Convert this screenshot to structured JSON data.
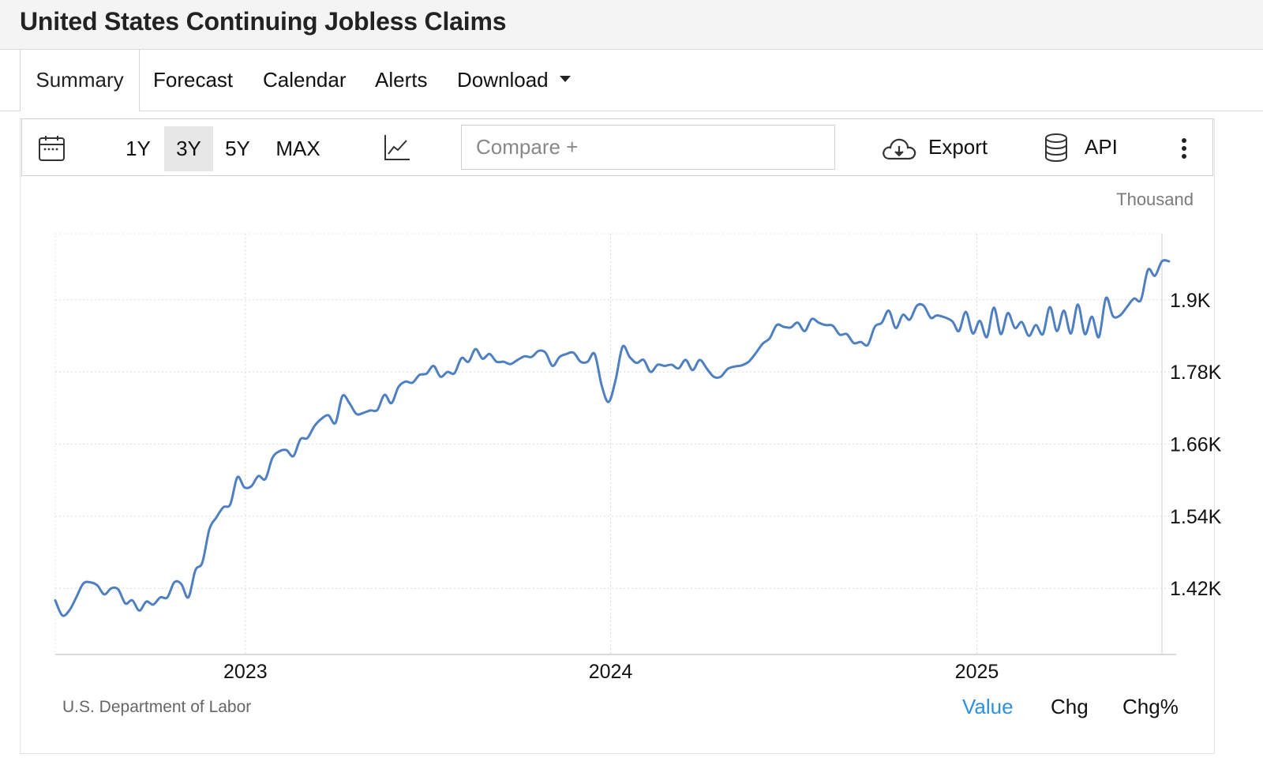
{
  "page": {
    "title": "United States Continuing Jobless Claims"
  },
  "tabs": [
    {
      "label": "Summary",
      "active": true
    },
    {
      "label": "Forecast"
    },
    {
      "label": "Calendar"
    },
    {
      "label": "Alerts"
    },
    {
      "label": "Download"
    }
  ],
  "toolbar": {
    "ranges": [
      "1Y",
      "3Y",
      "5Y",
      "MAX"
    ],
    "active_range": "3Y",
    "compare_placeholder": "Compare +",
    "export_label": "Export",
    "api_label": "API",
    "icons": [
      "calendar-icon",
      "line-chart-icon",
      "cloud-download-icon",
      "database-icon",
      "more-vertical-icon"
    ]
  },
  "chart": {
    "unit_label": "Thousand",
    "source": "U.S. Department of Labor",
    "modes": [
      "Value",
      "Chg",
      "Chg%"
    ],
    "active_mode": "Value"
  },
  "colors": {
    "line": "#4e7fc0",
    "accent": "#2e8fdd",
    "grid": "#d9d9d9"
  },
  "chart_data": {
    "type": "line",
    "title": "",
    "xlabel": "",
    "ylabel": "",
    "x_ticks": [
      "2023",
      "2024",
      "2025"
    ],
    "y_ticks": [
      {
        "value": 1420,
        "label": "1.42K"
      },
      {
        "value": 1540,
        "label": "1.54K"
      },
      {
        "value": 1660,
        "label": "1.66K"
      },
      {
        "value": 1780,
        "label": "1.78K"
      },
      {
        "value": 1900,
        "label": "1.9K"
      }
    ],
    "ylim": [
      1310,
      2010
    ],
    "xlim": [
      "2022-06-25",
      "2025-07-05"
    ],
    "grid": true,
    "series": [
      {
        "points": [
          [
            "2022-06-25",
            1400
          ],
          [
            "2022-07-02",
            1375
          ],
          [
            "2022-07-09",
            1383
          ],
          [
            "2022-07-16",
            1405
          ],
          [
            "2022-07-23",
            1428
          ],
          [
            "2022-07-30",
            1430
          ],
          [
            "2022-08-06",
            1425
          ],
          [
            "2022-08-13",
            1410
          ],
          [
            "2022-08-20",
            1420
          ],
          [
            "2022-08-27",
            1418
          ],
          [
            "2022-09-03",
            1395
          ],
          [
            "2022-09-10",
            1400
          ],
          [
            "2022-09-17",
            1383
          ],
          [
            "2022-09-24",
            1398
          ],
          [
            "2022-10-01",
            1393
          ],
          [
            "2022-10-08",
            1405
          ],
          [
            "2022-10-15",
            1405
          ],
          [
            "2022-10-22",
            1430
          ],
          [
            "2022-10-29",
            1427
          ],
          [
            "2022-11-05",
            1405
          ],
          [
            "2022-11-12",
            1450
          ],
          [
            "2022-11-19",
            1463
          ],
          [
            "2022-11-26",
            1518
          ],
          [
            "2022-12-03",
            1538
          ],
          [
            "2022-12-10",
            1555
          ],
          [
            "2022-12-17",
            1560
          ],
          [
            "2022-12-24",
            1605
          ],
          [
            "2022-12-31",
            1588
          ],
          [
            "2023-01-07",
            1590
          ],
          [
            "2023-01-14",
            1607
          ],
          [
            "2023-01-21",
            1602
          ],
          [
            "2023-01-28",
            1637
          ],
          [
            "2023-02-04",
            1648
          ],
          [
            "2023-02-11",
            1650
          ],
          [
            "2023-02-18",
            1640
          ],
          [
            "2023-02-25",
            1668
          ],
          [
            "2023-03-04",
            1670
          ],
          [
            "2023-03-11",
            1690
          ],
          [
            "2023-03-18",
            1702
          ],
          [
            "2023-03-25",
            1708
          ],
          [
            "2023-04-01",
            1695
          ],
          [
            "2023-04-08",
            1740
          ],
          [
            "2023-04-15",
            1728
          ],
          [
            "2023-04-22",
            1710
          ],
          [
            "2023-04-29",
            1712
          ],
          [
            "2023-05-06",
            1716
          ],
          [
            "2023-05-13",
            1717
          ],
          [
            "2023-05-20",
            1742
          ],
          [
            "2023-05-27",
            1728
          ],
          [
            "2023-06-03",
            1755
          ],
          [
            "2023-06-10",
            1764
          ],
          [
            "2023-06-17",
            1762
          ],
          [
            "2023-06-24",
            1775
          ],
          [
            "2023-07-01",
            1777
          ],
          [
            "2023-07-08",
            1790
          ],
          [
            "2023-07-15",
            1772
          ],
          [
            "2023-07-22",
            1780
          ],
          [
            "2023-07-29",
            1778
          ],
          [
            "2023-08-05",
            1803
          ],
          [
            "2023-08-12",
            1797
          ],
          [
            "2023-08-19",
            1818
          ],
          [
            "2023-08-26",
            1802
          ],
          [
            "2023-09-02",
            1810
          ],
          [
            "2023-09-09",
            1797
          ],
          [
            "2023-09-16",
            1797
          ],
          [
            "2023-09-23",
            1793
          ],
          [
            "2023-09-30",
            1800
          ],
          [
            "2023-10-07",
            1806
          ],
          [
            "2023-10-14",
            1805
          ],
          [
            "2023-10-21",
            1815
          ],
          [
            "2023-10-28",
            1812
          ],
          [
            "2023-11-04",
            1790
          ],
          [
            "2023-11-11",
            1805
          ],
          [
            "2023-11-18",
            1810
          ],
          [
            "2023-11-25",
            1812
          ],
          [
            "2023-12-02",
            1797
          ],
          [
            "2023-12-09",
            1797
          ],
          [
            "2023-12-16",
            1810
          ],
          [
            "2023-12-23",
            1758
          ],
          [
            "2023-12-30",
            1730
          ],
          [
            "2024-01-06",
            1767
          ],
          [
            "2024-01-13",
            1822
          ],
          [
            "2024-01-20",
            1805
          ],
          [
            "2024-01-27",
            1795
          ],
          [
            "2024-02-03",
            1800
          ],
          [
            "2024-02-10",
            1780
          ],
          [
            "2024-02-17",
            1792
          ],
          [
            "2024-02-24",
            1790
          ],
          [
            "2024-03-02",
            1792
          ],
          [
            "2024-03-09",
            1786
          ],
          [
            "2024-03-16",
            1800
          ],
          [
            "2024-03-23",
            1783
          ],
          [
            "2024-03-30",
            1800
          ],
          [
            "2024-04-06",
            1786
          ],
          [
            "2024-04-13",
            1772
          ],
          [
            "2024-04-20",
            1772
          ],
          [
            "2024-04-27",
            1785
          ],
          [
            "2024-05-04",
            1789
          ],
          [
            "2024-05-11",
            1791
          ],
          [
            "2024-05-18",
            1797
          ],
          [
            "2024-05-25",
            1811
          ],
          [
            "2024-06-01",
            1827
          ],
          [
            "2024-06-08",
            1836
          ],
          [
            "2024-06-15",
            1858
          ],
          [
            "2024-06-22",
            1855
          ],
          [
            "2024-06-29",
            1854
          ],
          [
            "2024-07-06",
            1862
          ],
          [
            "2024-07-13",
            1848
          ],
          [
            "2024-07-20",
            1868
          ],
          [
            "2024-07-27",
            1862
          ],
          [
            "2024-08-03",
            1858
          ],
          [
            "2024-08-10",
            1857
          ],
          [
            "2024-08-17",
            1842
          ],
          [
            "2024-08-24",
            1843
          ],
          [
            "2024-08-31",
            1828
          ],
          [
            "2024-09-07",
            1830
          ],
          [
            "2024-09-14",
            1825
          ],
          [
            "2024-09-21",
            1855
          ],
          [
            "2024-09-28",
            1862
          ],
          [
            "2024-10-05",
            1882
          ],
          [
            "2024-10-12",
            1853
          ],
          [
            "2024-10-19",
            1875
          ],
          [
            "2024-10-26",
            1867
          ],
          [
            "2024-11-02",
            1890
          ],
          [
            "2024-11-09",
            1890
          ],
          [
            "2024-11-16",
            1870
          ],
          [
            "2024-11-23",
            1874
          ],
          [
            "2024-12-07",
            1865
          ],
          [
            "2024-12-14",
            1848
          ],
          [
            "2024-12-21",
            1880
          ],
          [
            "2024-12-28",
            1844
          ],
          [
            "2025-01-04",
            1865
          ],
          [
            "2025-01-11",
            1838
          ],
          [
            "2025-01-18",
            1887
          ],
          [
            "2025-01-25",
            1843
          ],
          [
            "2025-02-01",
            1878
          ],
          [
            "2025-02-08",
            1853
          ],
          [
            "2025-02-15",
            1863
          ],
          [
            "2025-02-22",
            1840
          ],
          [
            "2025-03-01",
            1858
          ],
          [
            "2025-03-08",
            1843
          ],
          [
            "2025-03-15",
            1888
          ],
          [
            "2025-03-22",
            1848
          ],
          [
            "2025-03-29",
            1882
          ],
          [
            "2025-04-05",
            1844
          ],
          [
            "2025-04-12",
            1892
          ],
          [
            "2025-04-19",
            1843
          ],
          [
            "2025-04-26",
            1872
          ],
          [
            "2025-05-03",
            1838
          ],
          [
            "2025-05-10",
            1903
          ],
          [
            "2025-05-17",
            1873
          ],
          [
            "2025-05-24",
            1874
          ],
          [
            "2025-05-31",
            1888
          ],
          [
            "2025-06-07",
            1902
          ],
          [
            "2025-06-14",
            1900
          ],
          [
            "2025-06-21",
            1950
          ],
          [
            "2025-06-28",
            1940
          ],
          [
            "2025-07-05",
            1964
          ],
          [
            "2025-07-12",
            1964
          ]
        ]
      }
    ]
  }
}
